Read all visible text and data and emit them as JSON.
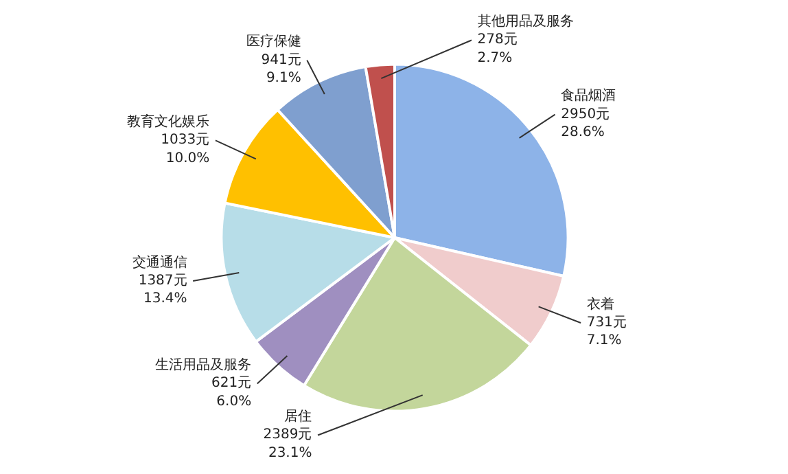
{
  "chart_data": {
    "type": "pie",
    "categories": [
      "食品烟酒",
      "衣着",
      "居住",
      "生活用品及服务",
      "交通通信",
      "教育文化娱乐",
      "医疗保健",
      "其他用品及服务"
    ],
    "values": [
      2950,
      731,
      2389,
      621,
      1387,
      1033,
      941,
      278
    ],
    "colors": [
      "#8db3e8",
      "#f0cccc",
      "#c3d69b",
      "#9f8fc0",
      "#b7dde8",
      "#ffc000",
      "#7f9fcf",
      "#c0504d"
    ],
    "value_labels": [
      "2950元\n28.6%",
      "731元\n7.1%",
      "2389元\n23.1%",
      "621元\n6.0%",
      "1387元\n13.4%",
      "1033元\n10.0%",
      "941元\n9.1%",
      "278元\n2.7%"
    ]
  }
}
